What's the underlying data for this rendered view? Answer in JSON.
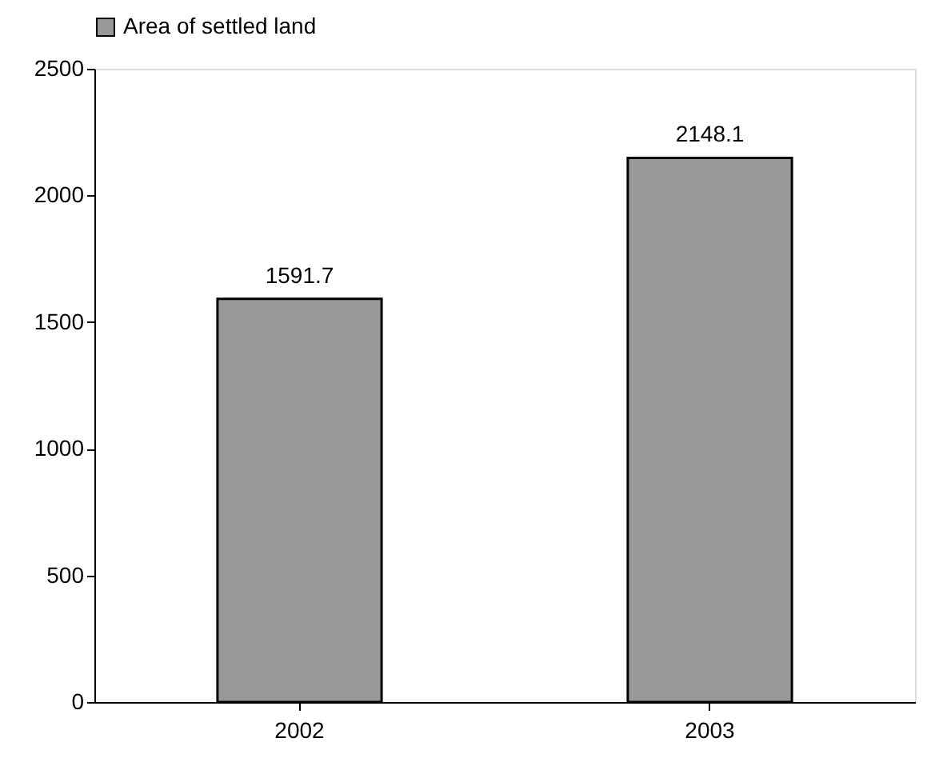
{
  "chart_data": {
    "type": "bar",
    "categories": [
      "2002",
      "2003"
    ],
    "series": [
      {
        "name": "Area of settled land",
        "color": "#999999",
        "values": [
          1591.7,
          2148.1
        ]
      }
    ],
    "ylim": [
      0,
      2500
    ],
    "yticks": [
      0,
      500,
      1000,
      1500,
      2000,
      2500
    ],
    "grid": false,
    "legend": "top",
    "data_labels": true
  }
}
